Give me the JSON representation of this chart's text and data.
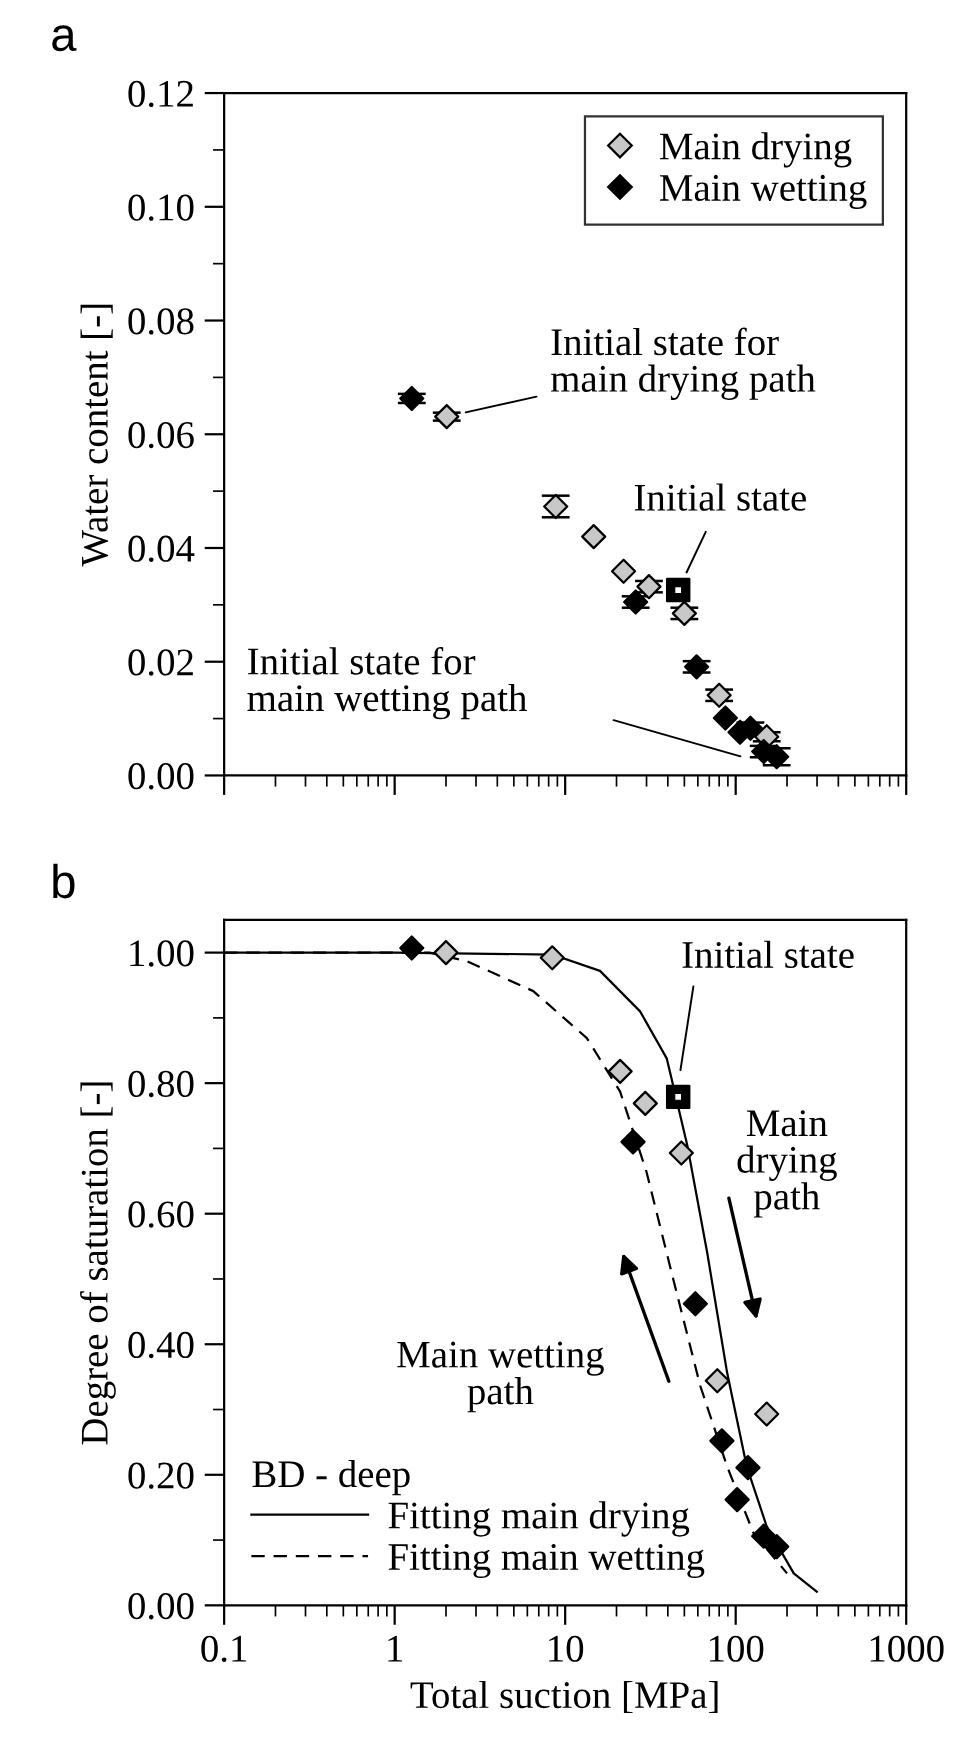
{
  "chart_data": [
    {
      "type": "scatter",
      "ylabel": "Water content [-]",
      "xlim": [
        0.1,
        1000
      ],
      "ylim": [
        0,
        0.12
      ],
      "log": "x",
      "tick_labels": "y",
      "legend": "top right",
      "grid": false,
      "xticks": [
        {
          "value": 0.1,
          "label": null
        },
        {
          "value": 1,
          "label": null
        },
        {
          "value": 10,
          "label": null
        },
        {
          "value": 100,
          "label": null
        },
        {
          "value": 1000,
          "label": null
        }
      ],
      "yticks": [
        {
          "value": 0,
          "label": "0.00"
        },
        {
          "value": 0.02,
          "label": "0.02"
        },
        {
          "value": 0.04,
          "label": "0.04"
        },
        {
          "value": 0.06,
          "label": "0.06"
        },
        {
          "value": 0.08,
          "label": "0.08"
        },
        {
          "value": 0.1,
          "label": "0.10"
        },
        {
          "value": 0.12,
          "label": "0.12"
        }
      ],
      "series": [
        {
          "name": "Main drying",
          "color": "#c8c8c8",
          "marker": "diamond",
          "x": [
            2.02,
            8.8,
            14.7,
            22,
            31,
            50,
            80,
            152
          ],
          "values": [
            0.0631,
            0.0473,
            0.042,
            0.0359,
            0.0332,
            0.0285,
            0.0141,
            0.0068
          ],
          "errors": [
            0.0007,
            0.0019,
            null,
            null,
            0.001,
            0.001,
            0.001,
            0.0008
          ]
        },
        {
          "name": "Main wetting",
          "color": "#000000",
          "marker": "diamond",
          "x": [
            1.26,
            25.9,
            59,
            87,
            106,
            122,
            146,
            174
          ],
          "values": [
            0.0663,
            0.0305,
            0.0191,
            0.0101,
            0.0076,
            0.0083,
            0.0042,
            0.0033
          ],
          "errors": [
            0.0008,
            0.001,
            0.001,
            null,
            null,
            0.001,
            0.001,
            0.0015
          ]
        },
        {
          "color": "#000000",
          "marker": "square",
          "x": [
            46
          ],
          "values": [
            0.0326
          ]
        }
      ],
      "annotations": [
        "a",
        {
          "text": "Initial state for\nmain drying path",
          "x": 2.02,
          "y": 0.0631
        },
        {
          "text": "Initial state",
          "x": 46,
          "y": 0.0326
        },
        "Initial state for\nmain wetting path"
      ]
    },
    {
      "type": "scatter",
      "xlabel": "Total suction [MPa]",
      "ylabel": "Degree of saturation [-]",
      "xlim": [
        0.1,
        1000
      ],
      "ylim": [
        0,
        1.05
      ],
      "log": "x",
      "legend": "bottom left",
      "legend_title": "BD - deep",
      "grid": false,
      "xticks": [
        0.1,
        1,
        10,
        100,
        1000
      ],
      "yticks": [
        {
          "value": 0,
          "label": "0.00"
        },
        {
          "value": 0.2,
          "label": "0.20"
        },
        {
          "value": 0.4,
          "label": "0.40"
        },
        {
          "value": 0.6,
          "label": "0.60"
        },
        {
          "value": 0.8,
          "label": "0.80"
        },
        {
          "value": 1.0,
          "label": "1.00"
        }
      ],
      "series": [
        {
          "type": "line",
          "name": "Fitting main drying",
          "color": "#000000",
          "line_style": "solid",
          "marker": "none",
          "x": [
            0.1,
            1,
            8.4,
            16,
            27.5,
            39.4,
            52,
            68,
            89,
            116,
            152,
            219,
            299
          ],
          "values": [
            1.0,
            1.0,
            0.997,
            0.972,
            0.91,
            0.838,
            0.705,
            0.541,
            0.357,
            0.213,
            0.121,
            0.049,
            0.021
          ]
        },
        {
          "type": "line",
          "name": "Fitting main wetting",
          "color": "#000000",
          "line_style": "dashed",
          "marker": "none",
          "x": [
            0.1,
            1.6,
            2.65,
            6.5,
            13.4,
            21,
            30,
            43,
            62,
            89,
            127,
            200
          ],
          "values": [
            1.0,
            1.0,
            0.987,
            0.941,
            0.869,
            0.787,
            0.664,
            0.5,
            0.336,
            0.213,
            0.111,
            0.049
          ]
        },
        {
          "color": "#c8c8c8",
          "marker": "diamond",
          "x": [
            2.0,
            8.4,
            21,
            29.5,
            48,
            78,
            152
          ],
          "values": [
            1.0,
            0.992,
            0.818,
            0.769,
            0.693,
            0.344,
            0.293
          ]
        },
        {
          "color": "#000000",
          "marker": "diamond",
          "x": [
            1.26,
            25,
            58,
            83,
            102,
            118,
            146,
            174
          ],
          "values": [
            1.007,
            0.71,
            0.462,
            0.252,
            0.162,
            0.211,
            0.106,
            0.09
          ]
        },
        {
          "color": "#000000",
          "marker": "square",
          "x": [
            46
          ],
          "values": [
            0.779
          ]
        }
      ],
      "annotations": [
        "b",
        "Initial state",
        "Main\ndrying\npath",
        "Main wetting\npath"
      ]
    }
  ]
}
